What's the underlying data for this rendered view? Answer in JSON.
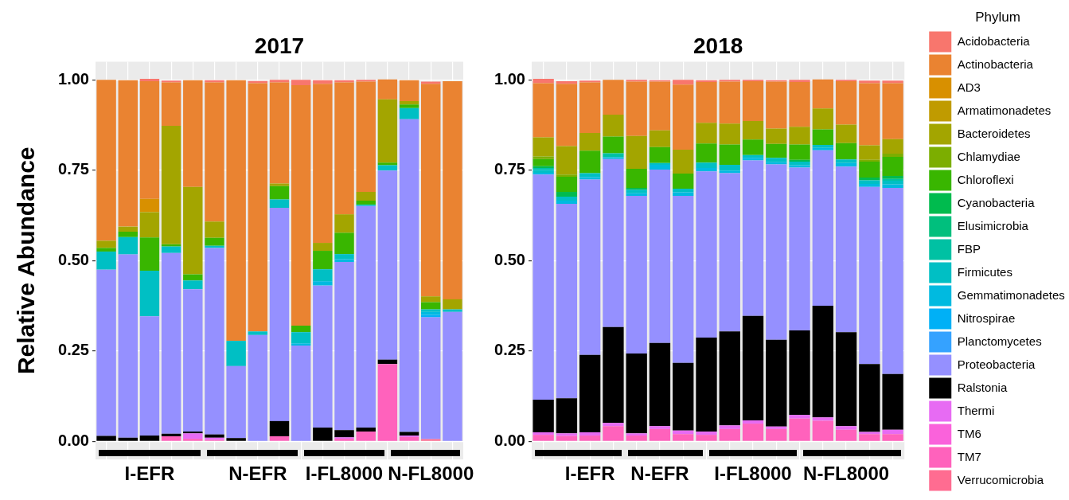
{
  "chart_data": [
    {
      "type": "bar",
      "stacked": true,
      "title": "2017",
      "ylabel": "Relative Abundance",
      "grid": true,
      "legend": false,
      "categories": [
        null,
        null,
        "I-EFR",
        null,
        null,
        null,
        null,
        "N-EFR",
        null,
        null,
        null,
        "I-FL8000",
        null,
        null,
        null,
        "N-FL8000",
        null
      ],
      "ylim": [
        -0.05,
        1.05
      ],
      "yticks": [
        {
          "value": 0,
          "label": "0.00"
        },
        {
          "value": 0.25,
          "label": "0.25"
        },
        {
          "value": 0.5,
          "label": "0.50"
        },
        {
          "value": 0.75,
          "label": "0.75"
        },
        {
          "value": 1,
          "label": "1.00"
        }
      ],
      "series": [
        {
          "color": "#ff6c91",
          "values": [
            0,
            0,
            0,
            0,
            0,
            0,
            0,
            0,
            0,
            0,
            0,
            0,
            0,
            0,
            0,
            0.006,
            0
          ]
        },
        {
          "color": "#ff62bc",
          "values": [
            0,
            0,
            0,
            0.014,
            0.007,
            0.004,
            0,
            0,
            0.014,
            0,
            0,
            0.007,
            0.027,
            0.214,
            0.012,
            0,
            0
          ]
        },
        {
          "color": "#fa62db",
          "values": [
            0,
            0,
            0,
            0,
            0,
            0,
            0,
            0,
            0,
            0,
            0,
            0,
            0,
            0,
            0,
            0,
            0
          ]
        },
        {
          "color": "#e76bf3",
          "values": [
            0,
            0,
            0,
            0,
            0.015,
            0.006,
            0,
            0,
            0,
            0,
            0,
            0.004,
            0,
            0,
            0.004,
            0,
            0
          ]
        },
        {
          "color": "#000000",
          "values": [
            0.015,
            0.01,
            0.016,
            0.007,
            0.005,
            0.009,
            0.009,
            0,
            0.042,
            0,
            0.038,
            0.02,
            0.011,
            0.012,
            0.01,
            0,
            0
          ]
        },
        {
          "color": "#9590ff",
          "values": [
            0.46,
            0.507,
            0.33,
            0.5,
            0.394,
            0.516,
            0.199,
            0.294,
            0.59,
            0.265,
            0.393,
            0.465,
            0.613,
            0.523,
            0.865,
            0.337,
            0.358
          ]
        },
        {
          "color": "#35a2ff",
          "values": [
            0,
            0,
            0,
            0,
            0,
            0,
            0,
            0,
            0,
            0,
            0,
            0,
            0,
            0,
            0,
            0,
            0
          ]
        },
        {
          "color": "#00b0f6",
          "values": [
            0,
            0,
            0,
            0,
            0,
            0,
            0,
            0,
            0,
            0,
            0,
            0,
            0,
            0,
            0,
            0.007,
            0
          ]
        },
        {
          "color": "#00bae0",
          "values": [
            0,
            0,
            0,
            0,
            0,
            0,
            0,
            0,
            0,
            0.006,
            0.012,
            0.008,
            0,
            0,
            0,
            0.008,
            0
          ]
        },
        {
          "color": "#00bfc4",
          "values": [
            0.05,
            0.048,
            0.126,
            0.018,
            0.024,
            0.006,
            0.07,
            0.01,
            0.023,
            0.031,
            0.033,
            0.014,
            0.004,
            0.015,
            0.031,
            0.007,
            0.007
          ]
        },
        {
          "color": "#00c1a3",
          "values": [
            0,
            0,
            0,
            0,
            0,
            0,
            0,
            0,
            0,
            0,
            0,
            0,
            0,
            0,
            0,
            0,
            0
          ]
        },
        {
          "color": "#00bf7d",
          "values": [
            0,
            0,
            0,
            0,
            0,
            0,
            0,
            0,
            0,
            0,
            0,
            0,
            0,
            0,
            0,
            0,
            0
          ]
        },
        {
          "color": "#00bb4e",
          "values": [
            0,
            0,
            0,
            0,
            0,
            0,
            0,
            0,
            0,
            0,
            0,
            0,
            0,
            0,
            0,
            0,
            0
          ]
        },
        {
          "color": "#39b600",
          "values": [
            0.01,
            0.015,
            0.092,
            0.006,
            0.017,
            0.022,
            0,
            0,
            0.037,
            0.018,
            0.051,
            0.059,
            0.011,
            0.007,
            0.01,
            0.02,
            0
          ]
        },
        {
          "color": "#7cae00",
          "values": [
            0,
            0,
            0,
            0,
            0,
            0,
            0,
            0,
            0,
            0,
            0,
            0,
            0,
            0,
            0,
            0,
            0
          ]
        },
        {
          "color": "#a3a500",
          "values": [
            0.02,
            0.014,
            0.07,
            0.328,
            0.242,
            0.045,
            0,
            0,
            0.007,
            0,
            0.022,
            0.051,
            0.024,
            0.175,
            0.009,
            0.016,
            0.028
          ]
        },
        {
          "color": "#c09b00",
          "values": [
            0,
            0,
            0,
            0,
            0,
            0,
            0,
            0,
            0,
            0,
            0,
            0,
            0,
            0,
            0,
            0,
            0
          ]
        },
        {
          "color": "#d89000",
          "values": [
            0,
            0,
            0.037,
            0,
            0,
            0,
            0,
            0,
            0,
            0,
            0,
            0,
            0,
            0,
            0,
            0,
            0
          ]
        },
        {
          "color": "#ea8331",
          "values": [
            0.445,
            0.405,
            0.325,
            0.12,
            0.295,
            0.385,
            0.721,
            0.687,
            0.28,
            0.665,
            0.44,
            0.365,
            0.305,
            0.055,
            0.058,
            0.588,
            0.603
          ]
        },
        {
          "color": "#f8766d",
          "values": [
            0,
            0,
            0.007,
            0.005,
            0,
            0.006,
            0,
            0.006,
            0.007,
            0.015,
            0.01,
            0.006,
            0.005,
            0,
            0,
            0.006,
            0
          ]
        }
      ]
    },
    {
      "type": "bar",
      "stacked": true,
      "title": "2018",
      "grid": true,
      "legend": "right",
      "legend_title": "Phylum",
      "categories": [
        null,
        null,
        "I-EFR",
        null,
        null,
        "N-EFR",
        null,
        null,
        null,
        "I-FL8000",
        null,
        null,
        null,
        "N-FL8000",
        null,
        null
      ],
      "ylim": [
        -0.05,
        1.05
      ],
      "yticks": [
        {
          "value": 0,
          "label": "0.00"
        },
        {
          "value": 0.25,
          "label": "0.25"
        },
        {
          "value": 0.5,
          "label": "0.50"
        },
        {
          "value": 0.75,
          "label": "0.75"
        },
        {
          "value": 1,
          "label": "1.00"
        }
      ],
      "series": [
        {
          "name": "Verrucomicrobia",
          "color": "#ff6c91",
          "values": [
            0,
            0,
            0,
            0,
            0,
            0,
            0,
            0,
            0,
            0,
            0,
            0,
            0,
            0,
            0,
            0
          ]
        },
        {
          "name": "TM7",
          "color": "#ff62bc",
          "values": [
            0.018,
            0.015,
            0.016,
            0.042,
            0.016,
            0.034,
            0.02,
            0.018,
            0.034,
            0.049,
            0.034,
            0.063,
            0.057,
            0.032,
            0.02,
            0.02
          ]
        },
        {
          "name": "TM6",
          "color": "#fa62db",
          "values": [
            0,
            0,
            0,
            0,
            0,
            0,
            0,
            0,
            0,
            0,
            0,
            0,
            0,
            0,
            0,
            0
          ]
        },
        {
          "name": "Thermi",
          "color": "#e76bf3",
          "values": [
            0.007,
            0.007,
            0.009,
            0.009,
            0.006,
            0.008,
            0.01,
            0.009,
            0.01,
            0.009,
            0.007,
            0.01,
            0.009,
            0.01,
            0.006,
            0.012
          ]
        },
        {
          "name": "Ralstonia",
          "color": "#000000",
          "values": [
            0.09,
            0.097,
            0.214,
            0.265,
            0.221,
            0.23,
            0.187,
            0.26,
            0.26,
            0.289,
            0.24,
            0.234,
            0.309,
            0.26,
            0.188,
            0.154
          ]
        },
        {
          "name": "Proteobacteria",
          "color": "#9590ff",
          "values": [
            0.623,
            0.538,
            0.485,
            0.465,
            0.436,
            0.48,
            0.462,
            0.46,
            0.438,
            0.43,
            0.485,
            0.45,
            0.43,
            0.458,
            0.49,
            0.515
          ]
        },
        {
          "name": "Planctomycetes",
          "color": "#35a2ff",
          "values": [
            0,
            0,
            0,
            0,
            0,
            0,
            0,
            0,
            0,
            0,
            0,
            0,
            0,
            0,
            0,
            0
          ]
        },
        {
          "name": "Nitrospirae",
          "color": "#00b0f6",
          "values": [
            0,
            0,
            0,
            0,
            0,
            0,
            0,
            0,
            0,
            0,
            0,
            0,
            0,
            0,
            0,
            0
          ]
        },
        {
          "name": "Gemmatimonadetes",
          "color": "#00bae0",
          "values": [
            0.005,
            0.009,
            0.007,
            0.005,
            0.007,
            0.013,
            0.01,
            0.009,
            0.007,
            0.007,
            0.006,
            0.007,
            0.007,
            0.01,
            0.008,
            0.01
          ]
        },
        {
          "name": "Firmicutes",
          "color": "#00bfc4",
          "values": [
            0.008,
            0.011,
            0.011,
            0,
            0.01,
            0.005,
            0.01,
            0.015,
            0.016,
            0.008,
            0.012,
            0.01,
            0.008,
            0.01,
            0.01,
            0.01
          ]
        },
        {
          "name": "FBP",
          "color": "#00c1a3",
          "values": [
            0.005,
            0,
            0,
            0.011,
            0,
            0,
            0,
            0,
            0,
            0,
            0,
            0,
            0,
            0,
            0,
            0.005
          ]
        },
        {
          "name": "Elusimicrobia",
          "color": "#00bf7d",
          "values": [
            0,
            0,
            0,
            0,
            0,
            0,
            0,
            0,
            0,
            0,
            0,
            0,
            0,
            0,
            0,
            0
          ]
        },
        {
          "name": "Cyanobacteria",
          "color": "#00bb4e",
          "values": [
            0.005,
            0.013,
            0,
            0,
            0.005,
            0,
            0,
            0,
            0,
            0,
            0,
            0.005,
            0,
            0,
            0.008,
            0.008
          ]
        },
        {
          "name": "Chloroflexi",
          "color": "#39b600",
          "values": [
            0.02,
            0.042,
            0.062,
            0.046,
            0.053,
            0.044,
            0.042,
            0.053,
            0.056,
            0.043,
            0.039,
            0.042,
            0.043,
            0.045,
            0.044,
            0.053
          ]
        },
        {
          "name": "Chlamydiae",
          "color": "#7cae00",
          "values": [
            0.007,
            0.006,
            0,
            0,
            0,
            0,
            0,
            0,
            0,
            0,
            0,
            0,
            0,
            0,
            0.005,
            0.009
          ]
        },
        {
          "name": "Bacteroidetes",
          "color": "#a3a500",
          "values": [
            0.053,
            0.079,
            0.049,
            0.061,
            0.091,
            0.046,
            0.066,
            0.057,
            0.058,
            0.051,
            0.042,
            0.049,
            0.058,
            0.051,
            0.04,
            0.04
          ]
        },
        {
          "name": "Armatimonadetes",
          "color": "#c09b00",
          "values": [
            0,
            0,
            0,
            0,
            0,
            0,
            0,
            0,
            0,
            0,
            0,
            0,
            0,
            0,
            0,
            0
          ]
        },
        {
          "name": "AD3",
          "color": "#d89000",
          "values": [
            0,
            0,
            0,
            0,
            0,
            0,
            0,
            0,
            0,
            0,
            0,
            0,
            0,
            0,
            0,
            0
          ]
        },
        {
          "name": "Actinobacteria",
          "color": "#ea8331",
          "values": [
            0.15,
            0.172,
            0.14,
            0.096,
            0.15,
            0.135,
            0.18,
            0.113,
            0.116,
            0.11,
            0.13,
            0.124,
            0.08,
            0.12,
            0.172,
            0.155
          ]
        },
        {
          "name": "Acidobacteria",
          "color": "#f8766d",
          "values": [
            0.012,
            0.007,
            0.005,
            0,
            0.005,
            0.004,
            0.013,
            0.005,
            0.005,
            0.004,
            0.004,
            0.006,
            0,
            0.004,
            0.007,
            0.007
          ]
        }
      ]
    }
  ]
}
